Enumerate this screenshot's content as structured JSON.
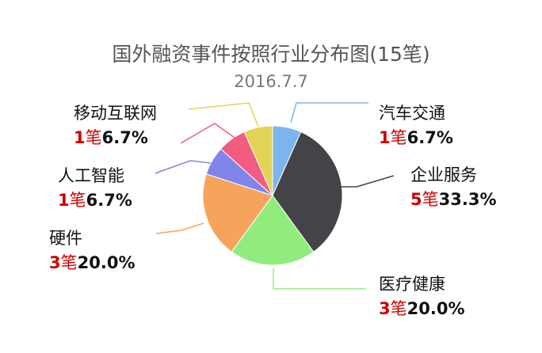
{
  "chart_data": {
    "type": "pie",
    "title": "国外融资事件按照行业分布图(15笔)",
    "subtitle": "2016.7.7",
    "unit": "笔",
    "slices": [
      {
        "label": "汽车交通",
        "count": 1,
        "percent": "6.7%",
        "color": "#7cb5ec"
      },
      {
        "label": "企业服务",
        "count": 5,
        "percent": "33.3%",
        "color": "#434348"
      },
      {
        "label": "医疗健康",
        "count": 3,
        "percent": "20.0%",
        "color": "#90ed7d"
      },
      {
        "label": "硬件",
        "count": 3,
        "percent": "20.0%",
        "color": "#f7a35c"
      },
      {
        "label": "人工智能",
        "count": 1,
        "percent": "6.7%",
        "color": "#8085e9"
      },
      {
        "label": "移动互联网",
        "count": 1,
        "percent": "6.7%",
        "color": "#f15c80"
      },
      {
        "label": "",
        "count": 1,
        "percent": "",
        "color": "#e4d354"
      }
    ]
  }
}
